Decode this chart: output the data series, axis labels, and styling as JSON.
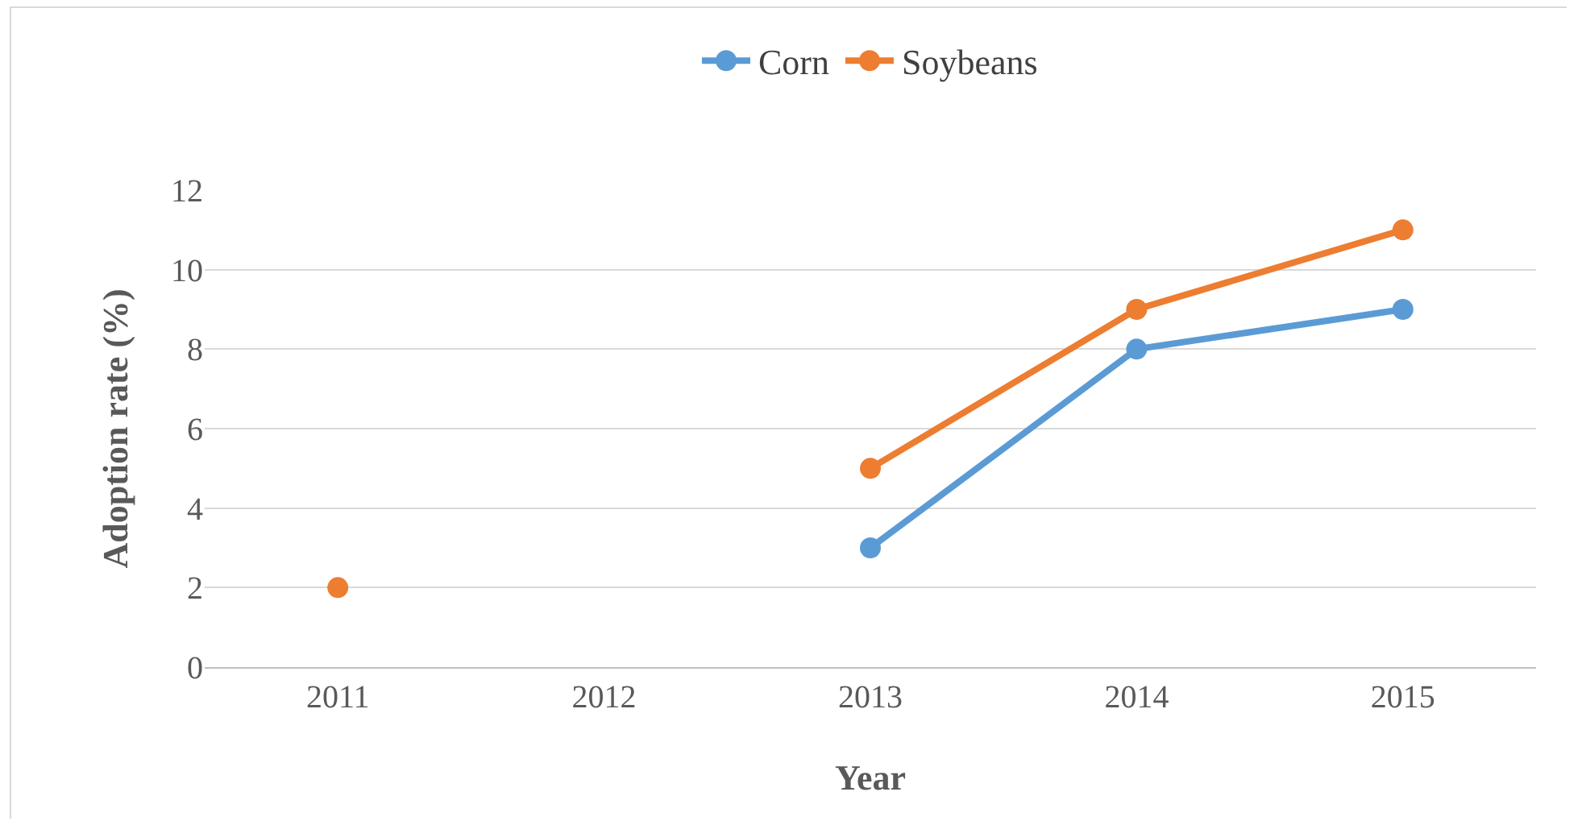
{
  "chart_data": {
    "type": "line",
    "xlabel": "Year",
    "ylabel": "Adoption rate (%)",
    "categories": [
      "2011",
      "2012",
      "2013",
      "2014",
      "2015"
    ],
    "series": [
      {
        "name": "Corn",
        "color": "#5b9bd5",
        "values": [
          null,
          null,
          3,
          8,
          9
        ]
      },
      {
        "name": "Soybeans",
        "color": "#ed7d31",
        "values": [
          2,
          null,
          5,
          9,
          11
        ]
      }
    ],
    "ylim": [
      0,
      12
    ],
    "yticks": [
      0,
      2,
      4,
      6,
      8,
      10,
      12
    ],
    "grid": "y",
    "legend": "top",
    "marker": "circle",
    "line_style": "solid"
  }
}
